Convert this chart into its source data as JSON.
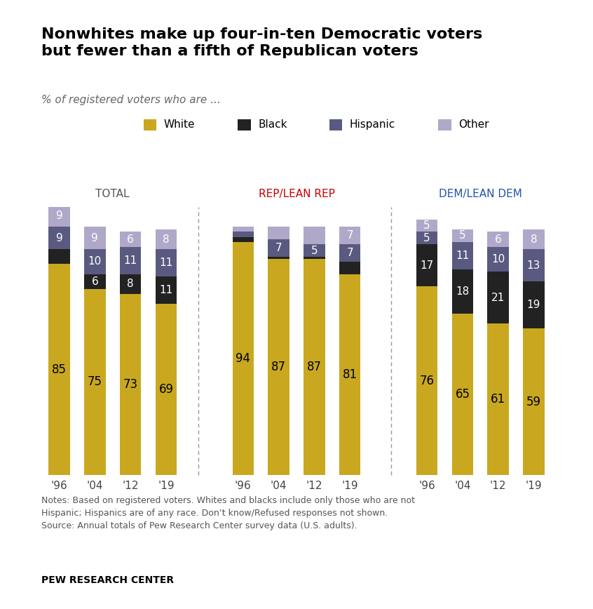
{
  "title": "Nonwhites make up four-in-ten Democratic voters\nbut fewer than a fifth of Republican voters",
  "subtitle": "% of registered voters who are ...",
  "years": [
    "'96",
    "'04",
    "'12",
    "'19"
  ],
  "groups": [
    "TOTAL",
    "REP/LEAN REP",
    "DEM/LEAN DEM"
  ],
  "group_colors": [
    "#555555",
    "#cc0000",
    "#2255aa"
  ],
  "colors": {
    "White": "#c9a820",
    "Black": "#222222",
    "Hispanic": "#5a5a80",
    "Other": "#b0a8c8"
  },
  "legend_order": [
    "White",
    "Black",
    "Hispanic",
    "Other"
  ],
  "data": {
    "TOTAL": {
      "White": [
        85,
        75,
        73,
        69
      ],
      "Black": [
        6,
        6,
        8,
        11
      ],
      "Hispanic": [
        9,
        10,
        11,
        11
      ],
      "Other": [
        9,
        9,
        6,
        8
      ]
    },
    "REP/LEAN REP": {
      "White": [
        94,
        87,
        87,
        81
      ],
      "Black": [
        2,
        1,
        1,
        5
      ],
      "Hispanic": [
        2,
        7,
        5,
        7
      ],
      "Other": [
        2,
        5,
        7,
        7
      ]
    },
    "DEM/LEAN DEM": {
      "White": [
        76,
        65,
        61,
        59
      ],
      "Black": [
        17,
        18,
        21,
        19
      ],
      "Hispanic": [
        5,
        11,
        10,
        13
      ],
      "Other": [
        5,
        5,
        6,
        8
      ]
    }
  },
  "show_labels": {
    "TOTAL": {
      "White": [
        true,
        true,
        true,
        true
      ],
      "Black": [
        false,
        true,
        true,
        true
      ],
      "Hispanic": [
        true,
        true,
        true,
        true
      ],
      "Other": [
        true,
        true,
        true,
        true
      ]
    },
    "REP/LEAN REP": {
      "White": [
        true,
        true,
        true,
        true
      ],
      "Black": [
        false,
        false,
        false,
        false
      ],
      "Hispanic": [
        false,
        true,
        true,
        true
      ],
      "Other": [
        false,
        false,
        false,
        true
      ]
    },
    "DEM/LEAN DEM": {
      "White": [
        true,
        true,
        true,
        true
      ],
      "Black": [
        true,
        true,
        true,
        true
      ],
      "Hispanic": [
        true,
        true,
        true,
        true
      ],
      "Other": [
        true,
        true,
        true,
        true
      ]
    }
  },
  "notes": "Notes: Based on registered voters. Whites and blacks include only those who are not\nHispanic; Hispanics are of any race. Don’t know/Refused responses not shown.\nSource: Annual totals of Pew Research Center survey data (U.S. adults).",
  "source": "PEW RESEARCH CENTER",
  "background_color": "#ffffff"
}
